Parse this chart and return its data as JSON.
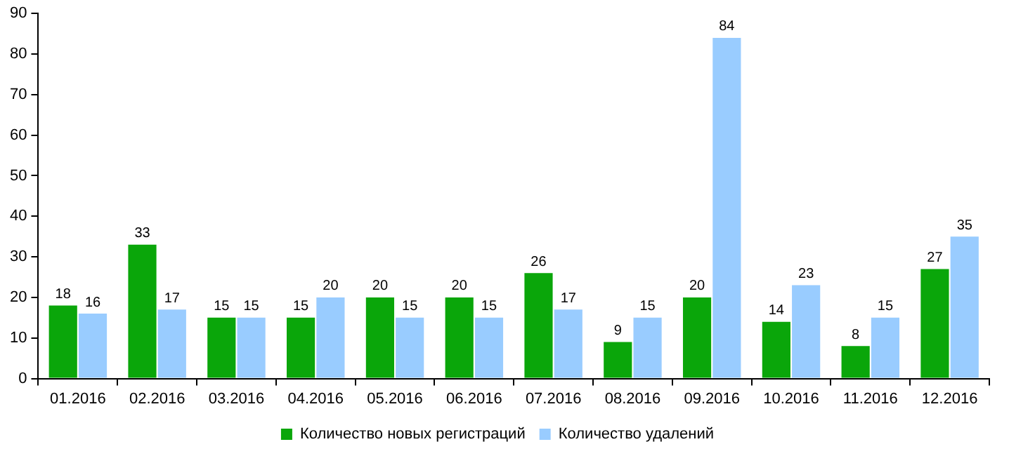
{
  "chart_data": {
    "type": "bar",
    "categories": [
      "01.2016",
      "02.2016",
      "03.2016",
      "04.2016",
      "05.2016",
      "06.2016",
      "07.2016",
      "08.2016",
      "09.2016",
      "10.2016",
      "11.2016",
      "12.2016"
    ],
    "series": [
      {
        "name": "Количество новых регистраций",
        "color": "#0aa60a",
        "values": [
          18,
          33,
          15,
          15,
          20,
          20,
          26,
          9,
          20,
          14,
          8,
          27
        ]
      },
      {
        "name": "Количество удалений",
        "color": "#99ccff",
        "values": [
          16,
          17,
          15,
          20,
          15,
          15,
          17,
          15,
          84,
          23,
          15,
          35
        ]
      }
    ],
    "ylim": [
      0,
      90
    ],
    "yticks": [
      0,
      10,
      20,
      30,
      40,
      50,
      60,
      70,
      80,
      90
    ],
    "grid": false,
    "legend": "bottom",
    "data_labels": true
  }
}
